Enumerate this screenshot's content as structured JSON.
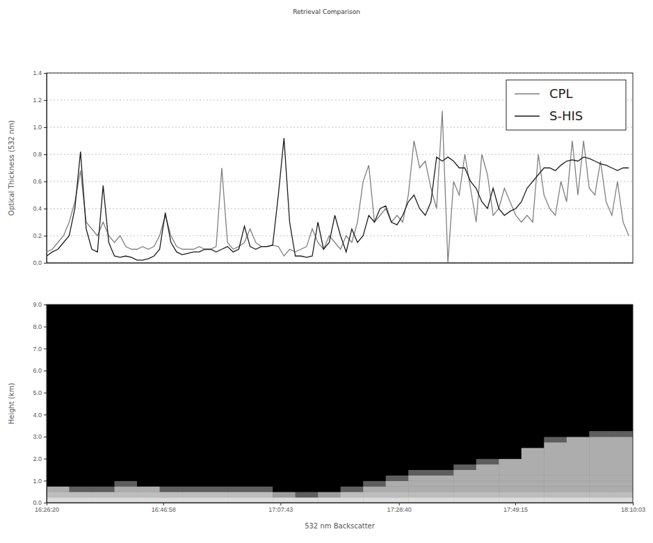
{
  "chart_data": [
    {
      "type": "line",
      "title": "Retrieval Comparison",
      "ylabel": "Optical Thickness (532 nm)",
      "x": [
        "16:26:20",
        "16:27:20",
        "16:28:20",
        "16:29:20",
        "16:30:20",
        "16:31:20",
        "16:32:20",
        "16:33:20",
        "16:34:20",
        "16:35:20",
        "16:36:20",
        "16:37:20",
        "16:38:20",
        "16:39:20",
        "16:40:20",
        "16:41:20",
        "16:42:20",
        "16:43:20",
        "16:44:20",
        "16:45:20",
        "16:46:20",
        "16:47:20",
        "16:48:20",
        "16:49:20",
        "16:50:20",
        "16:51:20",
        "16:52:20",
        "16:53:20",
        "16:54:20",
        "16:55:20",
        "16:56:20",
        "16:57:20",
        "16:58:20",
        "16:59:20",
        "17:00:20",
        "17:01:20",
        "17:02:20",
        "17:03:20",
        "17:04:20",
        "17:05:20",
        "17:06:20",
        "17:07:20",
        "17:08:20",
        "17:09:20",
        "17:10:20",
        "17:11:20",
        "17:12:20",
        "17:13:20",
        "17:14:20",
        "17:15:20",
        "17:16:20",
        "17:17:20",
        "17:18:20",
        "17:19:20",
        "17:20:20",
        "17:21:20",
        "17:22:20",
        "17:23:20",
        "17:24:20",
        "17:25:20",
        "17:26:20",
        "17:27:20",
        "17:28:20",
        "17:29:20",
        "17:30:20",
        "17:31:20",
        "17:32:20",
        "17:33:20",
        "17:34:20",
        "17:35:20",
        "17:36:20",
        "17:37:20",
        "17:38:20",
        "17:39:20",
        "17:40:20",
        "17:41:20",
        "17:42:20",
        "17:43:20",
        "17:44:20",
        "17:45:20",
        "17:46:20",
        "17:47:20",
        "17:48:20",
        "17:49:20",
        "17:50:20",
        "17:51:20",
        "17:52:20",
        "17:53:20",
        "17:54:20",
        "17:55:20",
        "17:56:20",
        "17:57:20",
        "17:58:20",
        "17:59:20",
        "18:00:20",
        "18:01:20",
        "18:02:20",
        "18:03:20",
        "18:04:20",
        "18:05:20",
        "18:06:20",
        "18:07:20",
        "18:08:20",
        "18:09:20"
      ],
      "series": [
        {
          "name": "CPL",
          "color": "#7f7f7f",
          "values": [
            0.08,
            0.1,
            0.15,
            0.2,
            0.3,
            0.45,
            0.68,
            0.3,
            0.25,
            0.2,
            0.3,
            0.2,
            0.15,
            0.2,
            0.12,
            0.1,
            0.1,
            0.12,
            0.1,
            0.12,
            0.2,
            0.35,
            0.2,
            0.12,
            0.1,
            0.1,
            0.1,
            0.12,
            0.1,
            0.1,
            0.12,
            0.7,
            0.15,
            0.1,
            0.12,
            0.15,
            0.25,
            0.15,
            0.12,
            0.12,
            0.13,
            0.12,
            0.05,
            0.1,
            0.08,
            0.1,
            0.12,
            0.25,
            0.15,
            0.1,
            0.2,
            0.15,
            0.1,
            0.2,
            0.15,
            0.3,
            0.6,
            0.72,
            0.3,
            0.35,
            0.4,
            0.3,
            0.35,
            0.3,
            0.5,
            0.9,
            0.7,
            0.75,
            0.55,
            0.4,
            1.12,
            0,
            0.6,
            0.5,
            0.8,
            0.55,
            0.3,
            0.8,
            0.65,
            0.35,
            0.4,
            0.55,
            0.45,
            0.35,
            0.3,
            0.35,
            0.3,
            0.8,
            0.5,
            0.4,
            0.35,
            0.6,
            0.45,
            0.9,
            0.5,
            0.9,
            0.55,
            0.5,
            0.75,
            0.45,
            0.35,
            0.6,
            0.3,
            0.2
          ]
        },
        {
          "name": "S-HIS",
          "color": "#1a1a1a",
          "values": [
            0.05,
            0.08,
            0.1,
            0.15,
            0.2,
            0.4,
            0.82,
            0.25,
            0.1,
            0.08,
            0.57,
            0.15,
            0.05,
            0.04,
            0.05,
            0.04,
            0.02,
            0.02,
            0.03,
            0.05,
            0.1,
            0.37,
            0.15,
            0.08,
            0.06,
            0.07,
            0.08,
            0.08,
            0.1,
            0.1,
            0.08,
            0.1,
            0.12,
            0.08,
            0.1,
            0.27,
            0.12,
            0.1,
            0.12,
            0.12,
            0.13,
            0.5,
            0.92,
            0.3,
            0.05,
            0.05,
            0.04,
            0.05,
            0.3,
            0.1,
            0.15,
            0.35,
            0.2,
            0.08,
            0.25,
            0.15,
            0.2,
            0.35,
            0.3,
            0.4,
            0.42,
            0.3,
            0.28,
            0.35,
            0.45,
            0.5,
            0.4,
            0.35,
            0.45,
            0.78,
            0.75,
            0.78,
            0.75,
            0.7,
            0.7,
            0.6,
            0.55,
            0.45,
            0.4,
            0.55,
            0.4,
            0.35,
            0.38,
            0.4,
            0.45,
            0.55,
            0.6,
            0.65,
            0.7,
            0.7,
            0.68,
            0.72,
            0.75,
            0.76,
            0.75,
            0.78,
            0.77,
            0.75,
            0.73,
            0.72,
            0.7,
            0.68,
            0.7,
            0.7
          ]
        }
      ],
      "xlim": [
        "16:26:20",
        "18:10:03"
      ],
      "ylim": [
        0,
        1.4
      ],
      "yticks": [
        {
          "value": 0,
          "label": "0.0"
        },
        0.2,
        0.4,
        0.6,
        0.8,
        {
          "value": 1,
          "label": "1.0"
        },
        1.2,
        1.4
      ],
      "grid": true,
      "legend": "upper right",
      "tick_labels": "y"
    },
    {
      "type": "heatmap",
      "xlabel": "532 nm Backscatter",
      "ylabel": "Height (km)",
      "x": [
        "16:26:20",
        "16:30:20",
        "16:34:20",
        "16:38:20",
        "16:42:20",
        "16:46:20",
        "16:50:20",
        "16:54:20",
        "16:58:20",
        "17:02:20",
        "17:06:20",
        "17:10:20",
        "17:14:20",
        "17:18:20",
        "17:22:20",
        "17:26:20",
        "17:30:20",
        "17:34:20",
        "17:38:20",
        "17:42:20",
        "17:46:20",
        "17:50:20",
        "17:54:20",
        "17:58:20",
        "18:02:20",
        "18:06:20",
        "18:10:03"
      ],
      "y": [
        0,
        0.25,
        0.5,
        0.75,
        1,
        1.25,
        1.5,
        1.75,
        2,
        2.25,
        2.5,
        2.75,
        3,
        3.25
      ],
      "cells": [
        [
          0.7,
          0.7,
          0.7,
          0.7,
          0.7,
          0.7,
          0.7,
          0.7,
          0.7,
          0.7,
          0.7,
          0.7,
          0.7,
          0.7,
          0.7,
          0.7,
          0.7,
          0.7,
          0.7,
          0.7,
          0.7,
          0.7,
          0.7,
          0.7,
          0.7,
          0.7
        ],
        [
          0.6,
          0.6,
          0.6,
          0.6,
          0.6,
          0.6,
          0.6,
          0.6,
          0.6,
          0.6,
          0.5,
          0.3,
          0.5,
          0.6,
          0.6,
          0.6,
          0.6,
          0.6,
          0.6,
          0.6,
          0.6,
          0.6,
          0.6,
          0.6,
          0.6,
          0.6
        ],
        [
          0.55,
          0.3,
          0.3,
          0.55,
          0.55,
          0.3,
          0.3,
          0.3,
          0.3,
          0.3,
          0,
          0,
          0,
          0.3,
          0.55,
          0.55,
          0.55,
          0.55,
          0.55,
          0.55,
          0.55,
          0.55,
          0.55,
          0.55,
          0.55,
          0.55
        ],
        [
          0,
          0,
          0,
          0.3,
          0,
          0,
          0,
          0,
          0,
          0,
          0,
          0,
          0,
          0,
          0.3,
          0.55,
          0.55,
          0.55,
          0.55,
          0.55,
          0.55,
          0.55,
          0.55,
          0.55,
          0.55,
          0.55
        ],
        [
          0,
          0,
          0,
          0,
          0,
          0,
          0,
          0,
          0,
          0,
          0,
          0,
          0,
          0,
          0,
          0.3,
          0.55,
          0.55,
          0.55,
          0.55,
          0.55,
          0.55,
          0.55,
          0.55,
          0.55,
          0.55
        ],
        [
          0,
          0,
          0,
          0,
          0,
          0,
          0,
          0,
          0,
          0,
          0,
          0,
          0,
          0,
          0,
          0,
          0.3,
          0.3,
          0.55,
          0.55,
          0.55,
          0.55,
          0.55,
          0.55,
          0.55,
          0.55
        ],
        [
          0,
          0,
          0,
          0,
          0,
          0,
          0,
          0,
          0,
          0,
          0,
          0,
          0,
          0,
          0,
          0,
          0,
          0,
          0.3,
          0.55,
          0.55,
          0.55,
          0.55,
          0.55,
          0.55,
          0.55
        ],
        [
          0,
          0,
          0,
          0,
          0,
          0,
          0,
          0,
          0,
          0,
          0,
          0,
          0,
          0,
          0,
          0,
          0,
          0,
          0,
          0.3,
          0.55,
          0.55,
          0.55,
          0.55,
          0.55,
          0.55
        ],
        [
          0,
          0,
          0,
          0,
          0,
          0,
          0,
          0,
          0,
          0,
          0,
          0,
          0,
          0,
          0,
          0,
          0,
          0,
          0,
          0,
          0,
          0.55,
          0.55,
          0.55,
          0.55,
          0.55
        ],
        [
          0,
          0,
          0,
          0,
          0,
          0,
          0,
          0,
          0,
          0,
          0,
          0,
          0,
          0,
          0,
          0,
          0,
          0,
          0,
          0,
          0,
          0.55,
          0.55,
          0.55,
          0.55,
          0.55
        ],
        [
          0,
          0,
          0,
          0,
          0,
          0,
          0,
          0,
          0,
          0,
          0,
          0,
          0,
          0,
          0,
          0,
          0,
          0,
          0,
          0,
          0,
          0,
          0.55,
          0.55,
          0.55,
          0.55
        ],
        [
          0,
          0,
          0,
          0,
          0,
          0,
          0,
          0,
          0,
          0,
          0,
          0,
          0,
          0,
          0,
          0,
          0,
          0,
          0,
          0,
          0,
          0,
          0.3,
          0.55,
          0.55,
          0.55
        ],
        [
          0,
          0,
          0,
          0,
          0,
          0,
          0,
          0,
          0,
          0,
          0,
          0,
          0,
          0,
          0,
          0,
          0,
          0,
          0,
          0,
          0,
          0,
          0,
          0,
          0.3,
          0.3
        ]
      ],
      "xlim": [
        "16:26:20",
        "18:10:03"
      ],
      "ylim": [
        0,
        9
      ],
      "xticks": [
        "16:26:20",
        "16:46:58",
        "17:07:43",
        "17:28:40",
        "17:49:15",
        "18:10:03"
      ],
      "yticks": [
        {
          "value": 0,
          "label": "0.0"
        },
        {
          "value": 1,
          "label": "1.0"
        },
        {
          "value": 2,
          "label": "2.0"
        },
        {
          "value": 3,
          "label": "3.0"
        },
        {
          "value": 4,
          "label": "4.0"
        },
        {
          "value": 5,
          "label": "5.0"
        },
        {
          "value": 6,
          "label": "6.0"
        },
        {
          "value": 7,
          "label": "7.0"
        },
        {
          "value": 8,
          "label": "8.0"
        },
        {
          "value": 9,
          "label": "9.0"
        }
      ]
    }
  ]
}
